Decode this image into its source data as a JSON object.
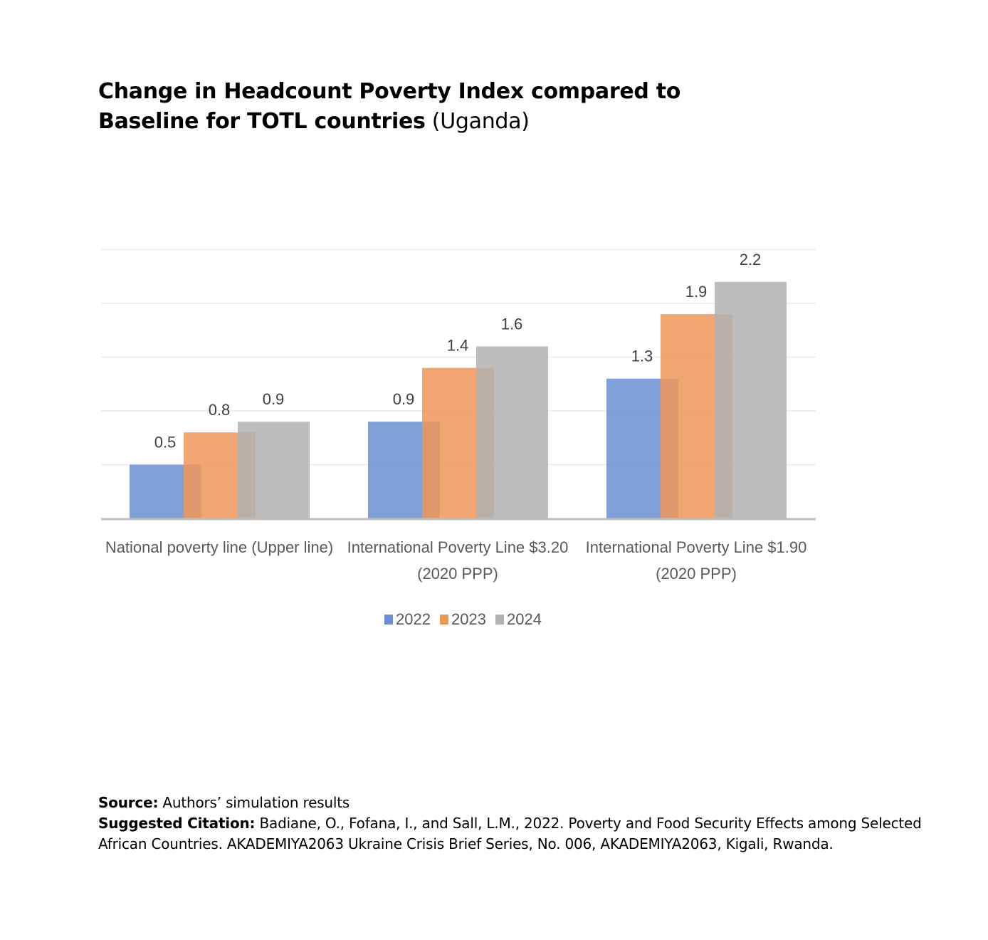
{
  "title": {
    "line1": "Change in Headcount Poverty Index compared to",
    "line2_bold": "Baseline for TOTL countries",
    "line2_normal": " (Uganda)"
  },
  "chart_data": {
    "type": "bar",
    "categories": [
      [
        "National poverty line (Upper line)"
      ],
      [
        "International Poverty Line $3.20",
        "(2020 PPP)"
      ],
      [
        "International Poverty Line $1.90",
        "(2020 PPP)"
      ]
    ],
    "series": [
      {
        "name": "2022",
        "values": [
          0.5,
          0.9,
          1.3
        ],
        "color": "#6a8fd3"
      },
      {
        "name": "2023",
        "values": [
          0.8,
          1.4,
          1.9
        ],
        "color": "#ee9758"
      },
      {
        "name": "2024",
        "values": [
          0.9,
          1.6,
          2.2
        ],
        "color": "#b2b2b2"
      }
    ],
    "ylim": [
      0,
      2.5
    ],
    "grid": true,
    "legend": "bottom-center",
    "data_labels": true
  },
  "footer": {
    "source_label": "Source:",
    "source_text": " Authors’ simulation results",
    "citation_label": "Suggested Citation:",
    "citation_text": " Badiane, O., Fofana, I., and Sall, L.M., 2022. Poverty and Food Security Effects among Selected African Countries. AKADEMIYA2063 Ukraine Crisis Brief Series, No. 006, AKADEMIYA2063, Kigali, Rwanda."
  }
}
